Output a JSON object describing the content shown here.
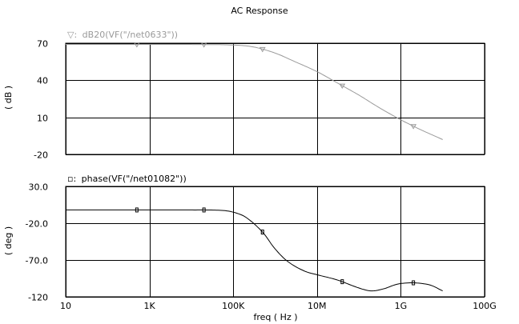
{
  "window": {
    "title": "AC Response"
  },
  "chart_data": [
    {
      "type": "line",
      "xscale": "log",
      "xlim": [
        10,
        100000000000
      ],
      "ylim": [
        -20,
        70
      ],
      "ylabel": "( dB )",
      "yticks": [
        {
          "value": 70,
          "label": "70"
        },
        {
          "value": 40,
          "label": "40"
        },
        {
          "value": 10,
          "label": "10"
        },
        {
          "value": -20,
          "label": "-20"
        }
      ],
      "grid": true,
      "series": [
        {
          "name": "dB20(VF(\"/net0633\"))",
          "legend_marker": "▽:",
          "color": "#9a9a9a",
          "marker": "triangle-down",
          "x": [
            10,
            100,
            1000,
            10000,
            100000,
            300000,
            1000000,
            3000000,
            10000000,
            30000000,
            100000000,
            300000000,
            1000000000,
            3000000000,
            10000000000
          ],
          "y": [
            69,
            69,
            69,
            69,
            68.5,
            67,
            62,
            55,
            47,
            38,
            28,
            18,
            8,
            0,
            -8
          ],
          "marker_x": [
            500,
            20000,
            500000,
            40000000,
            2000000000
          ]
        }
      ]
    },
    {
      "type": "line",
      "xscale": "log",
      "xlim": [
        10,
        100000000000
      ],
      "ylim": [
        -120,
        30
      ],
      "xlabel": "freq ( Hz )",
      "ylabel": "( deg )",
      "xticks": [
        {
          "value": 10,
          "label": "10"
        },
        {
          "value": 1000,
          "label": "1K"
        },
        {
          "value": 100000,
          "label": "100K"
        },
        {
          "value": 10000000,
          "label": "10M"
        },
        {
          "value": 1000000000,
          "label": "1G"
        },
        {
          "value": 100000000000,
          "label": "100G"
        }
      ],
      "yticks": [
        {
          "value": 30,
          "label": "30.0"
        },
        {
          "value": -20,
          "label": "-20.0"
        },
        {
          "value": -70,
          "label": "-70.0"
        },
        {
          "value": -120,
          "label": "-120"
        }
      ],
      "grid": true,
      "series": [
        {
          "name": "phase(VF(\"/net01082\"))",
          "legend_marker": "▫:",
          "color": "#000000",
          "marker": "square",
          "x": [
            10,
            1000,
            10000,
            50000,
            100000,
            200000,
            500000,
            1000000,
            2000000,
            5000000,
            10000000,
            30000000,
            100000000,
            200000000,
            400000000,
            700000000,
            1000000000,
            2000000000,
            5000000000,
            10000000000
          ],
          "y": [
            -2,
            -2,
            -2,
            -2.5,
            -5,
            -12,
            -32,
            -55,
            -72,
            -85,
            -90,
            -97,
            -108,
            -112,
            -109,
            -104,
            -102,
            -101,
            -104,
            -112
          ],
          "marker_x": [
            500,
            20000,
            500000,
            40000000,
            2000000000
          ]
        }
      ]
    }
  ]
}
